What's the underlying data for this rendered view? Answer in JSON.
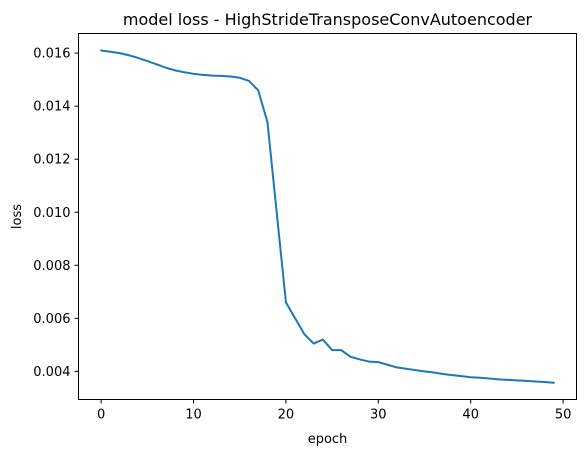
{
  "chart_data": {
    "type": "line",
    "title": "model loss - HighStrideTransposeConvAutoencoder",
    "xlabel": "epoch",
    "ylabel": "loss",
    "xlim": [
      -2.45,
      51.45
    ],
    "ylim": [
      0.00294,
      0.01674
    ],
    "xticks": [
      0,
      10,
      20,
      30,
      40,
      50
    ],
    "xtick_labels": [
      "0",
      "10",
      "20",
      "30",
      "40",
      "50"
    ],
    "yticks": [
      0.004,
      0.006,
      0.008,
      0.01,
      0.012,
      0.014,
      0.016
    ],
    "ytick_labels": [
      "0.004",
      "0.006",
      "0.008",
      "0.010",
      "0.012",
      "0.014",
      "0.016"
    ],
    "grid": false,
    "legend": "none",
    "line_color": "#1f77b4",
    "series": [
      {
        "x": [
          0,
          1,
          2,
          3,
          4,
          5,
          6,
          7,
          8,
          9,
          10,
          11,
          12,
          13,
          14,
          15,
          16,
          17,
          18,
          19,
          20,
          21,
          22,
          23,
          24,
          25,
          26,
          27,
          28,
          29,
          30,
          31,
          32,
          33,
          34,
          35,
          36,
          37,
          38,
          39,
          40,
          41,
          42,
          43,
          44,
          45,
          46,
          47,
          48,
          49
        ],
        "values": [
          0.0161,
          0.01605,
          0.016,
          0.01592,
          0.01582,
          0.0157,
          0.01558,
          0.01545,
          0.01535,
          0.01528,
          0.01522,
          0.01518,
          0.01515,
          0.01514,
          0.01512,
          0.01507,
          0.01495,
          0.0146,
          0.0134,
          0.01,
          0.0066,
          0.006,
          0.0054,
          0.00505,
          0.0052,
          0.0048,
          0.0048,
          0.00455,
          0.00445,
          0.00437,
          0.00435,
          0.00425,
          0.00415,
          0.0041,
          0.00405,
          0.004,
          0.00396,
          0.0039,
          0.00386,
          0.00382,
          0.00378,
          0.00376,
          0.00373,
          0.0037,
          0.00368,
          0.00366,
          0.00364,
          0.00362,
          0.0036,
          0.00357
        ]
      }
    ]
  }
}
